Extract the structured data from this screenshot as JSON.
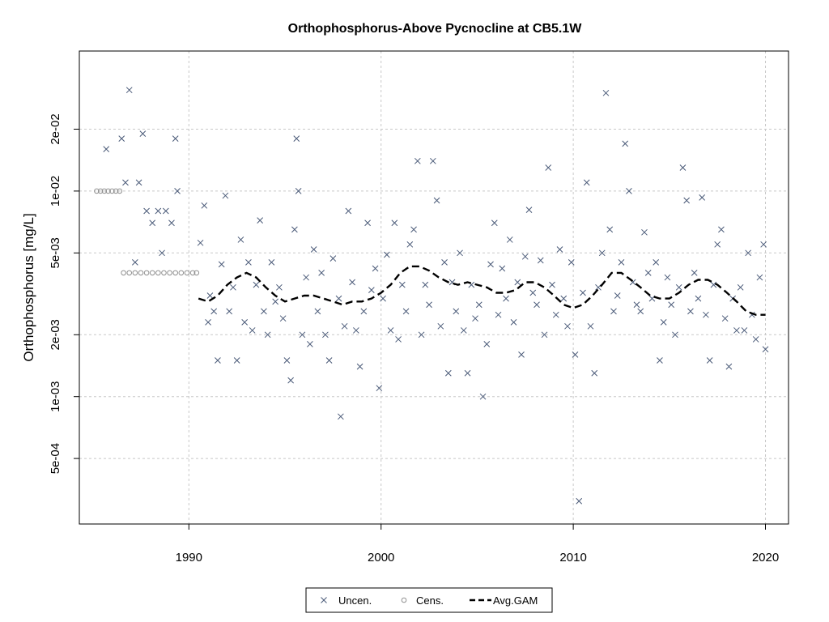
{
  "chart_data": {
    "type": "scatter",
    "title": "Orthophosphorus-Above Pycnocline at CB5.1W",
    "xlabel": "",
    "ylabel": "Orthophosphorus [mg/L]",
    "y_scale": "log",
    "xlim": [
      1984.3,
      2021.2
    ],
    "ylim": [
      0.00024,
      0.048
    ],
    "x_ticks": [
      1990,
      2000,
      2010,
      2020
    ],
    "x_tick_labels": [
      "1990",
      "2000",
      "2010",
      "2020"
    ],
    "y_ticks": [
      0.0005,
      0.001,
      0.002,
      0.005,
      0.01,
      0.02
    ],
    "y_tick_labels": [
      "5e-04",
      "1e-03",
      "2e-03",
      "5e-03",
      "1e-02",
      "2e-02"
    ],
    "grid": true,
    "legend_position": "bottom-center",
    "legend": [
      {
        "label": "Uncen.",
        "marker": "x"
      },
      {
        "label": "Cens.",
        "marker": "circle"
      },
      {
        "label": "Avg.GAM",
        "marker": "dashed-line"
      }
    ],
    "colors": {
      "uncen": "#4a5a78",
      "cens": "#909090",
      "gam": "#000000"
    },
    "series": [
      {
        "name": "Uncen.",
        "marker": "x",
        "points": [
          [
            1985.7,
            0.016
          ],
          [
            1986.5,
            0.018
          ],
          [
            1986.7,
            0.011
          ],
          [
            1986.9,
            0.031
          ],
          [
            1987.2,
            0.0045
          ],
          [
            1987.4,
            0.011
          ],
          [
            1987.6,
            0.019
          ],
          [
            1987.8,
            0.008
          ],
          [
            1988.1,
            0.007
          ],
          [
            1988.4,
            0.008
          ],
          [
            1988.6,
            0.005
          ],
          [
            1988.8,
            0.008
          ],
          [
            1989.1,
            0.007
          ],
          [
            1989.3,
            0.018
          ],
          [
            1989.4,
            0.01
          ],
          [
            1990.6,
            0.0056
          ],
          [
            1990.8,
            0.0085
          ],
          [
            1991.0,
            0.0023
          ],
          [
            1991.1,
            0.0031
          ],
          [
            1991.3,
            0.0026
          ],
          [
            1991.5,
            0.0015
          ],
          [
            1991.7,
            0.0044
          ],
          [
            1991.9,
            0.0095
          ],
          [
            1992.1,
            0.0026
          ],
          [
            1992.3,
            0.0034
          ],
          [
            1992.5,
            0.0015
          ],
          [
            1992.7,
            0.0058
          ],
          [
            1992.9,
            0.0023
          ],
          [
            1993.1,
            0.0045
          ],
          [
            1993.3,
            0.0021
          ],
          [
            1993.5,
            0.0035
          ],
          [
            1993.7,
            0.0072
          ],
          [
            1993.9,
            0.0026
          ],
          [
            1994.1,
            0.002
          ],
          [
            1994.3,
            0.0045
          ],
          [
            1994.5,
            0.0029
          ],
          [
            1994.7,
            0.0034
          ],
          [
            1994.9,
            0.0024
          ],
          [
            1995.1,
            0.0015
          ],
          [
            1995.3,
            0.0012
          ],
          [
            1995.5,
            0.0065
          ],
          [
            1995.6,
            0.018
          ],
          [
            1995.7,
            0.01
          ],
          [
            1995.9,
            0.002
          ],
          [
            1996.1,
            0.0038
          ],
          [
            1996.3,
            0.0018
          ],
          [
            1996.5,
            0.0052
          ],
          [
            1996.7,
            0.0026
          ],
          [
            1996.9,
            0.004
          ],
          [
            1997.1,
            0.002
          ],
          [
            1997.3,
            0.0015
          ],
          [
            1997.5,
            0.0047
          ],
          [
            1997.8,
            0.003
          ],
          [
            1997.9,
            0.0008
          ],
          [
            1998.1,
            0.0022
          ],
          [
            1998.3,
            0.008
          ],
          [
            1998.5,
            0.0036
          ],
          [
            1998.7,
            0.0021
          ],
          [
            1998.9,
            0.0014
          ],
          [
            1999.1,
            0.0026
          ],
          [
            1999.3,
            0.007
          ],
          [
            1999.5,
            0.0033
          ],
          [
            1999.7,
            0.0042
          ],
          [
            1999.9,
            0.0011
          ],
          [
            2000.1,
            0.003
          ],
          [
            2000.3,
            0.0049
          ],
          [
            2000.5,
            0.0021
          ],
          [
            2000.7,
            0.007
          ],
          [
            2000.9,
            0.0019
          ],
          [
            2001.1,
            0.0035
          ],
          [
            2001.3,
            0.0026
          ],
          [
            2001.5,
            0.0055
          ],
          [
            2001.7,
            0.0065
          ],
          [
            2001.9,
            0.014
          ],
          [
            2002.1,
            0.002
          ],
          [
            2002.3,
            0.0035
          ],
          [
            2002.5,
            0.0028
          ],
          [
            2002.7,
            0.014
          ],
          [
            2002.9,
            0.009
          ],
          [
            2003.1,
            0.0022
          ],
          [
            2003.3,
            0.0045
          ],
          [
            2003.5,
            0.0013
          ],
          [
            2003.7,
            0.0036
          ],
          [
            2003.9,
            0.0026
          ],
          [
            2004.1,
            0.005
          ],
          [
            2004.3,
            0.0021
          ],
          [
            2004.5,
            0.0013
          ],
          [
            2004.7,
            0.0035
          ],
          [
            2004.9,
            0.0024
          ],
          [
            2005.1,
            0.0028
          ],
          [
            2005.3,
            0.001
          ],
          [
            2005.5,
            0.0018
          ],
          [
            2005.7,
            0.0044
          ],
          [
            2005.9,
            0.007
          ],
          [
            2006.1,
            0.0025
          ],
          [
            2006.3,
            0.0042
          ],
          [
            2006.5,
            0.003
          ],
          [
            2006.7,
            0.0058
          ],
          [
            2006.9,
            0.0023
          ],
          [
            2007.1,
            0.0036
          ],
          [
            2007.3,
            0.0016
          ],
          [
            2007.5,
            0.0048
          ],
          [
            2007.7,
            0.0081
          ],
          [
            2007.9,
            0.0032
          ],
          [
            2008.1,
            0.0028
          ],
          [
            2008.3,
            0.0046
          ],
          [
            2008.5,
            0.002
          ],
          [
            2008.7,
            0.013
          ],
          [
            2008.9,
            0.0035
          ],
          [
            2009.1,
            0.0025
          ],
          [
            2009.3,
            0.0052
          ],
          [
            2009.5,
            0.003
          ],
          [
            2009.7,
            0.0022
          ],
          [
            2009.9,
            0.0045
          ],
          [
            2010.1,
            0.0016
          ],
          [
            2010.3,
            0.00031
          ],
          [
            2010.5,
            0.0032
          ],
          [
            2010.7,
            0.011
          ],
          [
            2010.9,
            0.0022
          ],
          [
            2011.1,
            0.0013
          ],
          [
            2011.3,
            0.0034
          ],
          [
            2011.5,
            0.005
          ],
          [
            2011.7,
            0.03
          ],
          [
            2011.9,
            0.0065
          ],
          [
            2012.1,
            0.0026
          ],
          [
            2012.3,
            0.0031
          ],
          [
            2012.5,
            0.0045
          ],
          [
            2012.7,
            0.017
          ],
          [
            2012.9,
            0.01
          ],
          [
            2013.1,
            0.0036
          ],
          [
            2013.3,
            0.0028
          ],
          [
            2013.5,
            0.0026
          ],
          [
            2013.7,
            0.0063
          ],
          [
            2013.9,
            0.004
          ],
          [
            2014.1,
            0.003
          ],
          [
            2014.3,
            0.0045
          ],
          [
            2014.5,
            0.0015
          ],
          [
            2014.7,
            0.0023
          ],
          [
            2014.9,
            0.0038
          ],
          [
            2015.1,
            0.0028
          ],
          [
            2015.3,
            0.002
          ],
          [
            2015.5,
            0.0034
          ],
          [
            2015.7,
            0.013
          ],
          [
            2015.9,
            0.009
          ],
          [
            2016.1,
            0.0026
          ],
          [
            2016.3,
            0.004
          ],
          [
            2016.5,
            0.003
          ],
          [
            2016.7,
            0.0093
          ],
          [
            2016.9,
            0.0025
          ],
          [
            2017.1,
            0.0015
          ],
          [
            2017.3,
            0.0035
          ],
          [
            2017.5,
            0.0055
          ],
          [
            2017.7,
            0.0065
          ],
          [
            2017.9,
            0.0024
          ],
          [
            2018.1,
            0.0014
          ],
          [
            2018.3,
            0.003
          ],
          [
            2018.5,
            0.0021
          ],
          [
            2018.7,
            0.0034
          ],
          [
            2018.9,
            0.0021
          ],
          [
            2019.1,
            0.005
          ],
          [
            2019.3,
            0.0025
          ],
          [
            2019.5,
            0.0019
          ],
          [
            2019.7,
            0.0038
          ],
          [
            2019.9,
            0.0055
          ],
          [
            2020.0,
            0.0017
          ]
        ]
      },
      {
        "name": "Cens.",
        "marker": "circle",
        "points": [
          [
            1985.2,
            0.01
          ],
          [
            1985.4,
            0.01
          ],
          [
            1985.6,
            0.01
          ],
          [
            1985.8,
            0.01
          ],
          [
            1986.0,
            0.01
          ],
          [
            1986.2,
            0.01
          ],
          [
            1986.4,
            0.01
          ],
          [
            1986.6,
            0.004
          ],
          [
            1986.9,
            0.004
          ],
          [
            1987.2,
            0.004
          ],
          [
            1987.5,
            0.004
          ],
          [
            1987.8,
            0.004
          ],
          [
            1988.1,
            0.004
          ],
          [
            1988.4,
            0.004
          ],
          [
            1988.7,
            0.004
          ],
          [
            1989.0,
            0.004
          ],
          [
            1989.3,
            0.004
          ],
          [
            1989.6,
            0.004
          ],
          [
            1989.9,
            0.004
          ],
          [
            1990.2,
            0.004
          ],
          [
            1990.4,
            0.004
          ]
        ]
      },
      {
        "name": "Avg.GAM",
        "type": "line",
        "style": "dashed",
        "x": [
          1990.5,
          1991.0,
          1991.5,
          1992.0,
          1992.5,
          1993.0,
          1993.5,
          1994.0,
          1994.5,
          1995.0,
          1995.5,
          1996.0,
          1996.5,
          1997.0,
          1997.5,
          1998.0,
          1998.5,
          1999.0,
          1999.5,
          2000.0,
          2000.5,
          2001.0,
          2001.5,
          2002.0,
          2002.5,
          2003.0,
          2003.5,
          2004.0,
          2004.5,
          2005.0,
          2005.5,
          2006.0,
          2006.5,
          2007.0,
          2007.5,
          2008.0,
          2008.5,
          2009.0,
          2009.5,
          2010.0,
          2010.5,
          2011.0,
          2011.5,
          2012.0,
          2012.5,
          2013.0,
          2013.5,
          2014.0,
          2014.5,
          2015.0,
          2015.5,
          2016.0,
          2016.5,
          2017.0,
          2017.5,
          2018.0,
          2018.5,
          2019.0,
          2019.5,
          2020.0
        ],
        "y": [
          0.003,
          0.0029,
          0.0031,
          0.0035,
          0.0038,
          0.004,
          0.0038,
          0.0034,
          0.0031,
          0.0029,
          0.003,
          0.0031,
          0.0031,
          0.003,
          0.0029,
          0.0028,
          0.0029,
          0.0029,
          0.003,
          0.0032,
          0.0035,
          0.004,
          0.0043,
          0.0043,
          0.0041,
          0.0038,
          0.0036,
          0.0035,
          0.0036,
          0.0035,
          0.0034,
          0.0032,
          0.0032,
          0.0033,
          0.0036,
          0.0036,
          0.0034,
          0.0031,
          0.0028,
          0.0027,
          0.0028,
          0.0031,
          0.0035,
          0.004,
          0.004,
          0.0037,
          0.0034,
          0.0031,
          0.003,
          0.003,
          0.0032,
          0.0035,
          0.0037,
          0.0037,
          0.0035,
          0.0032,
          0.0029,
          0.0026,
          0.0025,
          0.0025
        ]
      }
    ]
  }
}
